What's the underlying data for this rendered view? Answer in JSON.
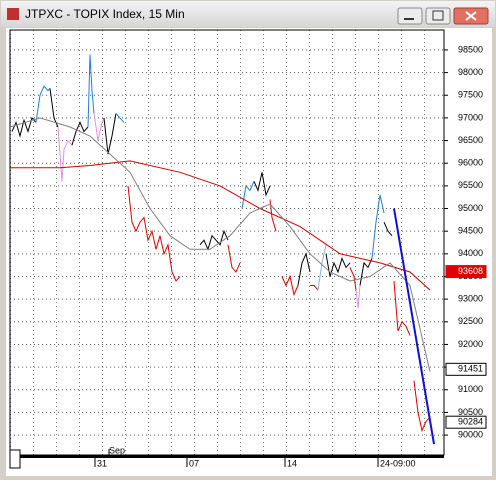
{
  "window": {
    "title": "JTPXC - TOPIX Index, 15 Min"
  },
  "chart_data": {
    "type": "line",
    "ylim": [
      89560,
      98940
    ],
    "yticks": [
      90000,
      90500,
      91000,
      91500,
      92000,
      92500,
      93000,
      93500,
      94000,
      94500,
      95000,
      95500,
      96000,
      96500,
      97000,
      97500,
      98000,
      98500
    ],
    "xlim": [
      10,
      444
    ],
    "xticks": [
      {
        "value": 95,
        "label": "31"
      },
      {
        "value": 187,
        "label": "07"
      },
      {
        "value": 285,
        "label": "14"
      },
      {
        "value": 378,
        "label": "24-09:00"
      }
    ],
    "month_label": {
      "value": 117,
      "label": "Sep"
    },
    "grid": true,
    "price_markers": [
      {
        "value": 93608,
        "color": "#e00000"
      },
      {
        "value": 91451,
        "color": "#ffffff"
      },
      {
        "value": 90284,
        "color": "#ffffff"
      }
    ],
    "series": [
      {
        "color": "#000000",
        "x": [
          12,
          16,
          20,
          24,
          28,
          32,
          36
        ],
        "values": [
          96700,
          96900,
          96600,
          96950,
          96700,
          97000,
          96900
        ]
      },
      {
        "color": "#1e7fe0",
        "x": [
          36,
          40,
          44,
          48,
          50
        ],
        "values": [
          96900,
          97500,
          97700,
          97600,
          97650
        ]
      },
      {
        "color": "#000000",
        "x": [
          50,
          54,
          58
        ],
        "values": [
          97650,
          97000,
          96800
        ]
      },
      {
        "color": "#e890e0",
        "x": [
          58,
          60,
          62,
          64,
          68,
          72
        ],
        "values": [
          96800,
          96200,
          95600,
          96300,
          96500,
          96400
        ]
      },
      {
        "color": "#000000",
        "x": [
          72,
          76,
          80,
          84,
          88
        ],
        "values": [
          96400,
          96700,
          96900,
          96700,
          96800
        ]
      },
      {
        "color": "#1e7fe0",
        "x": [
          88,
          90,
          92,
          94
        ],
        "values": [
          96800,
          98400,
          97600,
          97100
        ]
      },
      {
        "color": "#e890e0",
        "x": [
          94,
          98,
          102,
          104
        ],
        "values": [
          97100,
          96500,
          96900,
          97000
        ]
      },
      {
        "color": "#000000",
        "x": [
          104,
          108,
          112,
          116
        ],
        "values": [
          97000,
          96200,
          96600,
          97100
        ]
      },
      {
        "color": "#1e7fe0",
        "x": [
          116,
          120,
          124
        ],
        "values": [
          97100,
          97000,
          96900
        ]
      },
      {
        "color": "#e00000",
        "x": [
          128,
          132,
          136,
          140,
          144,
          148,
          152,
          156,
          160,
          164,
          168,
          172,
          176,
          180
        ],
        "values": [
          95500,
          94700,
          94500,
          94700,
          94800,
          94300,
          94500,
          94100,
          94400,
          94000,
          94200,
          93600,
          93400,
          93500
        ]
      },
      {
        "color": "#000000",
        "x": [
          200,
          204,
          208,
          212,
          216,
          220,
          224,
          228
        ],
        "values": [
          94200,
          94300,
          94100,
          94400,
          94300,
          94200,
          94500,
          94300
        ]
      },
      {
        "color": "#e00000",
        "x": [
          228,
          232,
          236,
          240
        ],
        "values": [
          94200,
          93700,
          93600,
          93800
        ]
      },
      {
        "color": "#1e7fe0",
        "x": [
          242,
          246,
          250,
          254
        ],
        "values": [
          95000,
          95500,
          95400,
          95600
        ]
      },
      {
        "color": "#000000",
        "x": [
          254,
          258,
          262,
          266,
          270
        ],
        "values": [
          95600,
          95400,
          95800,
          95300,
          95500
        ]
      },
      {
        "color": "#e00000",
        "x": [
          270,
          272,
          276
        ],
        "values": [
          95200,
          94800,
          94500
        ]
      },
      {
        "color": "#e00000",
        "x": [
          282,
          286,
          290,
          294,
          298
        ],
        "values": [
          93500,
          93300,
          93500,
          93100,
          93300
        ]
      },
      {
        "color": "#000000",
        "x": [
          298,
          302,
          306,
          310
        ],
        "values": [
          93300,
          93800,
          94000,
          93600
        ]
      },
      {
        "color": "#e00000",
        "x": [
          310,
          314,
          318
        ],
        "values": [
          93300,
          93300,
          93200
        ]
      },
      {
        "color": "#80b8e0",
        "x": [
          318,
          322,
          326
        ],
        "values": [
          93200,
          93800,
          94200
        ]
      },
      {
        "color": "#000000",
        "x": [
          326,
          330,
          334,
          338,
          342,
          346,
          350
        ],
        "values": [
          94000,
          93500,
          93800,
          93600,
          93900,
          93700,
          93800
        ]
      },
      {
        "color": "#e00000",
        "x": [
          350,
          354,
          356
        ],
        "values": [
          93700,
          93500,
          93200
        ]
      },
      {
        "color": "#e890e0",
        "x": [
          356,
          358,
          360
        ],
        "values": [
          93200,
          92800,
          93300
        ]
      },
      {
        "color": "#000000",
        "x": [
          360,
          364,
          368,
          372
        ],
        "values": [
          93300,
          93800,
          93700,
          93900
        ]
      },
      {
        "color": "#1e7fe0",
        "x": [
          372,
          376,
          380,
          384
        ],
        "values": [
          93900,
          94700,
          95300,
          94900
        ]
      },
      {
        "color": "#000000",
        "x": [
          384,
          388,
          392
        ],
        "values": [
          94700,
          94500,
          94400
        ]
      },
      {
        "color": "#e00000",
        "x": [
          394,
          398,
          402,
          406,
          410
        ],
        "values": [
          93400,
          92300,
          92500,
          92400,
          92200
        ]
      },
      {
        "color": "#e00000",
        "x": [
          414,
          418,
          422,
          426,
          430
        ],
        "values": [
          91200,
          90500,
          90100,
          90300,
          90400
        ]
      },
      {
        "color": "#d00000",
        "x": [
          10,
          60,
          90,
          130,
          180,
          220,
          260,
          300,
          340,
          380,
          410,
          430
        ],
        "values": [
          95900,
          95900,
          95950,
          96050,
          95800,
          95500,
          95000,
          94600,
          94000,
          93800,
          93600,
          93200
        ]
      },
      {
        "color": "#808080",
        "x": [
          10,
          40,
          70,
          90,
          110,
          130,
          150,
          170,
          190,
          210,
          230,
          250,
          270,
          290,
          310,
          330,
          350,
          370,
          390,
          410,
          430
        ],
        "values": [
          96800,
          97000,
          96800,
          96600,
          96200,
          95800,
          95000,
          94400,
          94100,
          94100,
          94400,
          94900,
          95100,
          94600,
          94000,
          93600,
          93400,
          93500,
          93800,
          93300,
          91400
        ]
      },
      {
        "color": "#1010d0",
        "x": [
          394,
          434
        ],
        "values": [
          95000,
          89800
        ]
      }
    ]
  }
}
